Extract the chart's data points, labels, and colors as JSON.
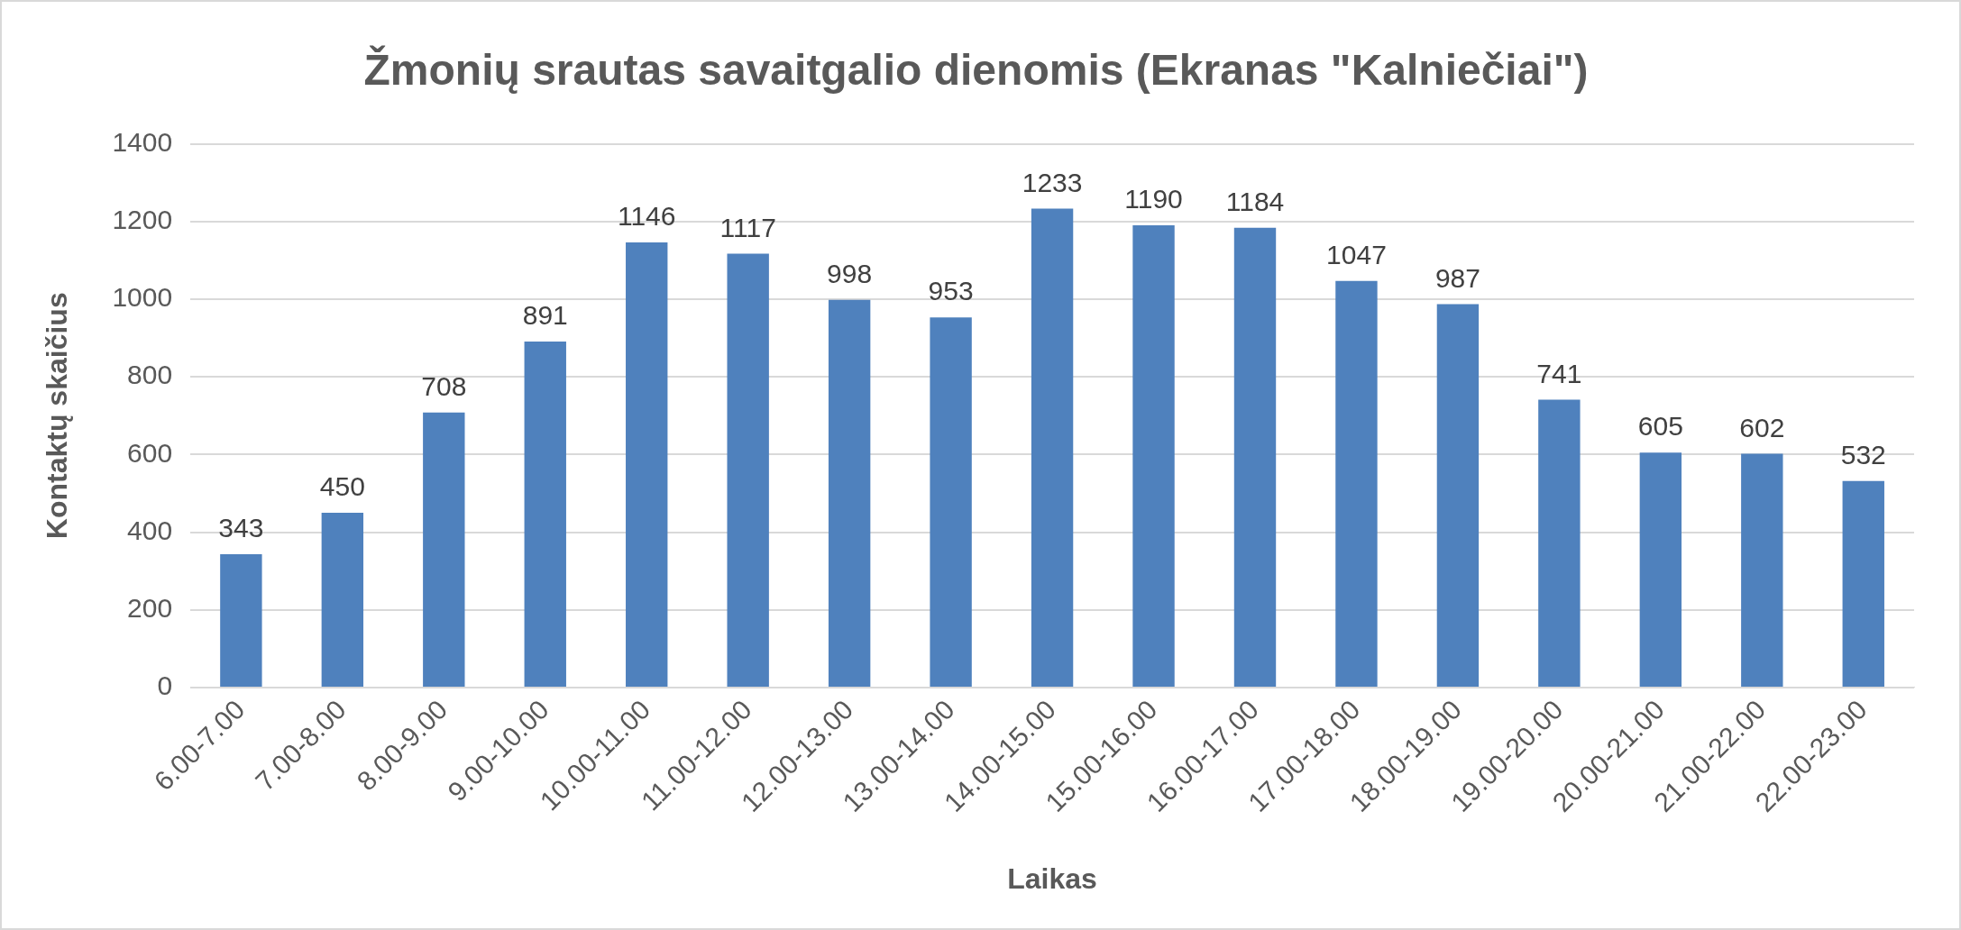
{
  "chart_data": {
    "type": "bar",
    "title": "Žmonių srautas savaitgalio dienomis (Ekranas \"Kalniečiai\")",
    "xlabel": "Laikas",
    "ylabel": "Kontaktų skaičius",
    "categories": [
      "6.00-7.00",
      "7.00-8.00",
      "8.00-9.00",
      "9.00-10.00",
      "10.00-11.00",
      "11.00-12.00",
      "12.00-13.00",
      "13.00-14.00",
      "14.00-15.00",
      "15.00-16.00",
      "16.00-17.00",
      "17.00-18.00",
      "18.00-19.00",
      "19.00-20.00",
      "20.00-21.00",
      "21.00-22.00",
      "22.00-23.00"
    ],
    "values": [
      343,
      450,
      708,
      891,
      1146,
      1117,
      998,
      953,
      1233,
      1190,
      1184,
      1047,
      987,
      741,
      605,
      602,
      532
    ],
    "color": "#4f81bd",
    "ylim": [
      0,
      1400
    ],
    "yticks": [
      0,
      200,
      400,
      600,
      800,
      1000,
      1200,
      1400
    ],
    "grid": "y",
    "data_labels": true,
    "legend": false
  }
}
